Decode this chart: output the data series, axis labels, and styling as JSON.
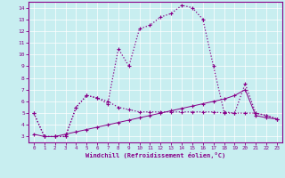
{
  "xlabel": "Windchill (Refroidissement éolien,°C)",
  "bg_color": "#c8eef0",
  "line_color": "#880088",
  "grid_color": "#aadddd",
  "xlim": [
    -0.5,
    23.5
  ],
  "ylim": [
    2.5,
    14.5
  ],
  "xticks": [
    0,
    1,
    2,
    3,
    4,
    5,
    6,
    7,
    8,
    9,
    10,
    11,
    12,
    13,
    14,
    15,
    16,
    17,
    18,
    19,
    20,
    21,
    22,
    23
  ],
  "yticks": [
    3,
    4,
    5,
    6,
    7,
    8,
    9,
    10,
    11,
    12,
    13,
    14
  ],
  "line1_x": [
    0,
    1,
    2,
    3,
    4,
    5,
    6,
    7,
    8,
    9,
    10,
    11,
    12,
    13,
    14,
    15,
    16,
    17,
    18,
    19,
    20,
    21,
    22,
    23
  ],
  "line1_y": [
    5.0,
    3.0,
    3.0,
    3.0,
    5.5,
    6.5,
    6.3,
    5.8,
    10.5,
    9.0,
    12.2,
    12.5,
    13.2,
    13.5,
    14.2,
    14.0,
    13.0,
    9.0,
    5.1,
    5.0,
    7.5,
    5.0,
    4.8,
    4.5
  ],
  "line2_x": [
    0,
    1,
    2,
    3,
    4,
    5,
    6,
    7,
    8,
    9,
    10,
    11,
    12,
    13,
    14,
    15,
    16,
    17,
    18,
    19,
    20,
    21,
    22,
    23
  ],
  "line2_y": [
    5.0,
    3.0,
    3.0,
    3.0,
    5.5,
    6.5,
    6.3,
    6.0,
    5.5,
    5.3,
    5.1,
    5.1,
    5.1,
    5.1,
    5.1,
    5.1,
    5.1,
    5.1,
    5.0,
    5.0,
    5.0,
    5.0,
    4.8,
    4.5
  ],
  "line3_x": [
    0,
    1,
    2,
    3,
    4,
    5,
    6,
    7,
    8,
    9,
    10,
    11,
    12,
    13,
    14,
    15,
    16,
    17,
    18,
    19,
    20,
    21,
    22,
    23
  ],
  "line3_y": [
    3.2,
    3.0,
    3.0,
    3.2,
    3.4,
    3.6,
    3.8,
    4.0,
    4.2,
    4.4,
    4.6,
    4.8,
    5.0,
    5.2,
    5.4,
    5.6,
    5.8,
    6.0,
    6.2,
    6.5,
    7.0,
    4.8,
    4.6,
    4.5
  ]
}
